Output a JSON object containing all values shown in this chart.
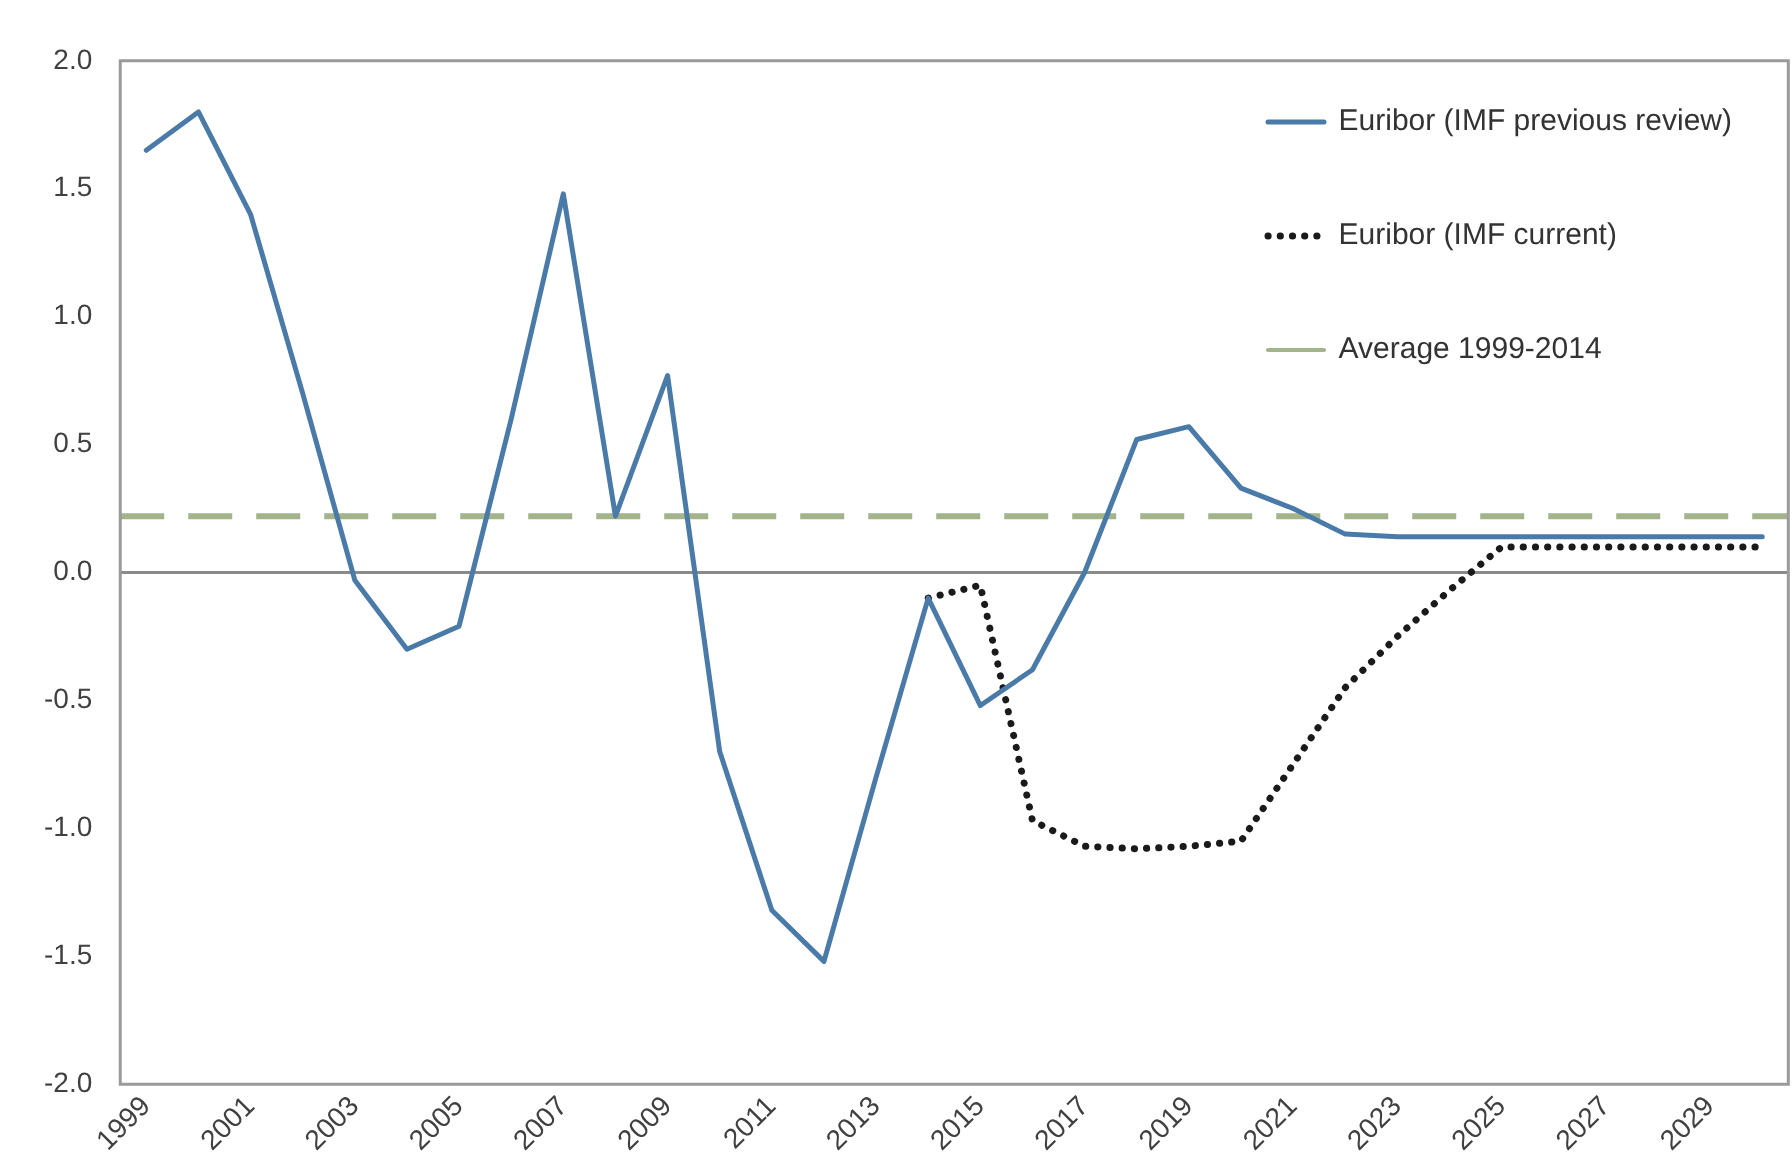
{
  "chart_data": {
    "type": "line",
    "categories": [
      "1999",
      null,
      "2001",
      null,
      "2003",
      null,
      "2005",
      null,
      "2007",
      null,
      "2009",
      null,
      "2011",
      null,
      "2013",
      null,
      "2015",
      null,
      "2017",
      null,
      "2019",
      null,
      "2021",
      null,
      "2023",
      null,
      "2025",
      null,
      "2027",
      null,
      "2029",
      null
    ],
    "series": [
      {
        "name": "Euribor (IMF previous review)",
        "color": "#4a7aa8",
        "line_style": "solid",
        "values": [
          1.65,
          1.8,
          1.4,
          0.7,
          -0.03,
          -0.3,
          -0.21,
          0.6,
          1.48,
          0.22,
          0.77,
          -0.7,
          -1.32,
          -1.52,
          -0.8,
          -0.1,
          -0.52,
          -0.38,
          0.0,
          0.52,
          0.57,
          0.33,
          0.25,
          0.15,
          0.14,
          0.14,
          0.14,
          0.14,
          0.14,
          0.14,
          0.14,
          0.14
        ]
      },
      {
        "name": "Euribor (IMF current)",
        "color": "#1a1a1a",
        "line_style": "dotted",
        "values": [
          null,
          null,
          null,
          null,
          null,
          null,
          null,
          null,
          null,
          null,
          null,
          null,
          null,
          null,
          null,
          -0.1,
          -0.05,
          -0.97,
          -1.07,
          -1.08,
          -1.07,
          -1.05,
          -0.75,
          -0.45,
          -0.25,
          -0.07,
          0.1,
          0.1,
          0.1,
          0.1,
          0.1,
          0.1
        ]
      }
    ],
    "ref_lines": [
      {
        "axis": "y",
        "value": 0.22,
        "label": "Average 1999-2014",
        "color": "#a3b38a",
        "line_style": "dashed"
      },
      {
        "axis": "y",
        "value": 0,
        "color": "#8a8a8a",
        "line_style": "solid"
      }
    ],
    "ylim": [
      -2,
      2
    ],
    "yticks": [
      {
        "value": -2,
        "label": "-2.0"
      },
      {
        "value": -1.5,
        "label": "-1.5"
      },
      {
        "value": -1,
        "label": "-1.0"
      },
      {
        "value": -0.5,
        "label": "-0.5"
      },
      {
        "value": 0,
        "label": "0.0"
      },
      {
        "value": 0.5,
        "label": "0.5"
      },
      {
        "value": 1,
        "label": "1.0"
      },
      {
        "value": 1.5,
        "label": "1.5"
      },
      {
        "value": 2,
        "label": "2.0"
      }
    ],
    "grid": false,
    "legend": "top right",
    "marker": "none"
  }
}
